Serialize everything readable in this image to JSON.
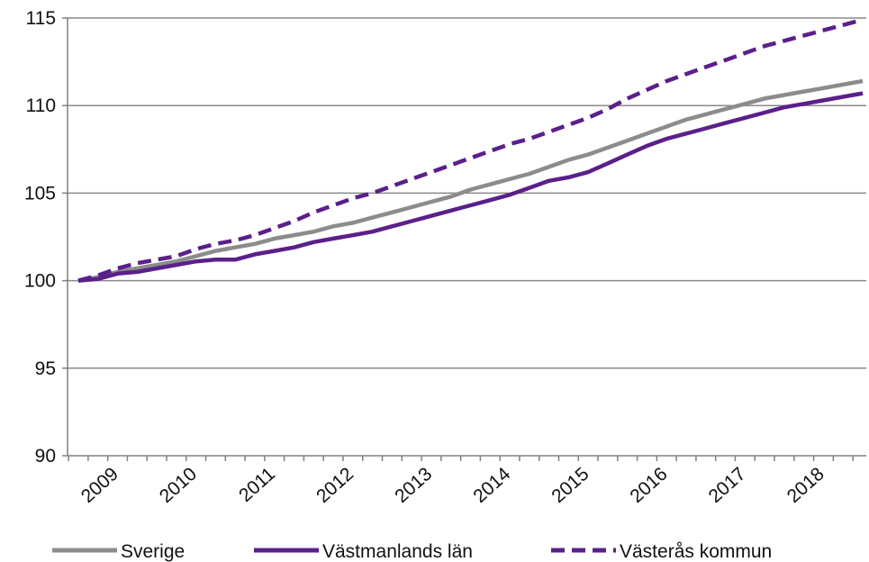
{
  "chart_data": {
    "type": "line",
    "title": "",
    "xlabel": "",
    "ylabel": "",
    "ylim": [
      90,
      115
    ],
    "yticks": [
      "90",
      "95",
      "100",
      "105",
      "110",
      "115"
    ],
    "xtick_labels": [
      "2009",
      "2010",
      "2011",
      "2012",
      "2013",
      "2014",
      "2015",
      "2016",
      "2017",
      "2018"
    ],
    "grid": true,
    "legend_position": "bottom",
    "x": [
      "2008 Q4",
      "2009 Q1",
      "2009 Q2",
      "2009 Q3",
      "2009 Q4",
      "2010 Q1",
      "2010 Q2",
      "2010 Q3",
      "2010 Q4",
      "2011 Q1",
      "2011 Q2",
      "2011 Q3",
      "2011 Q4",
      "2012 Q1",
      "2012 Q2",
      "2012 Q3",
      "2012 Q4",
      "2013 Q1",
      "2013 Q2",
      "2013 Q3",
      "2013 Q4",
      "2014 Q1",
      "2014 Q2",
      "2014 Q3",
      "2014 Q4",
      "2015 Q1",
      "2015 Q2",
      "2015 Q3",
      "2015 Q4",
      "2016 Q1",
      "2016 Q2",
      "2016 Q3",
      "2016 Q4",
      "2017 Q1",
      "2017 Q2",
      "2017 Q3",
      "2017 Q4",
      "2018 Q1",
      "2018 Q2",
      "2018 Q3",
      "2018 Q4"
    ],
    "series": [
      {
        "name": "Sverige",
        "color": "#8c8c8c",
        "dash": false,
        "values": [
          100.0,
          100.2,
          100.5,
          100.7,
          100.9,
          101.1,
          101.4,
          101.7,
          101.9,
          102.1,
          102.4,
          102.6,
          102.8,
          103.1,
          103.3,
          103.6,
          103.9,
          104.2,
          104.5,
          104.8,
          105.2,
          105.5,
          105.8,
          106.1,
          106.5,
          106.9,
          107.2,
          107.6,
          108.0,
          108.4,
          108.8,
          109.2,
          109.5,
          109.8,
          110.1,
          110.4,
          110.6,
          110.8,
          111.0,
          111.2,
          111.4
        ]
      },
      {
        "name": "Västmanlands län",
        "color": "#5b1f8a",
        "dash": false,
        "values": [
          100.0,
          100.1,
          100.4,
          100.5,
          100.7,
          100.9,
          101.1,
          101.2,
          101.2,
          101.5,
          101.7,
          101.9,
          102.2,
          102.4,
          102.6,
          102.8,
          103.1,
          103.4,
          103.7,
          104.0,
          104.3,
          104.6,
          104.9,
          105.3,
          105.7,
          105.9,
          106.2,
          106.7,
          107.2,
          107.7,
          108.1,
          108.4,
          108.7,
          109.0,
          109.3,
          109.6,
          109.9,
          110.1,
          110.3,
          110.5,
          110.7
        ]
      },
      {
        "name": "Västerås kommun",
        "color": "#5b1f8a",
        "dash": true,
        "values": [
          100.0,
          100.3,
          100.7,
          101.0,
          101.2,
          101.4,
          101.8,
          102.1,
          102.3,
          102.6,
          103.0,
          103.4,
          103.9,
          104.3,
          104.7,
          105.0,
          105.4,
          105.8,
          106.2,
          106.6,
          107.0,
          107.4,
          107.8,
          108.1,
          108.5,
          108.9,
          109.3,
          109.8,
          110.4,
          110.9,
          111.4,
          111.8,
          112.2,
          112.6,
          113.0,
          113.4,
          113.7,
          114.0,
          114.3,
          114.6,
          114.9
        ]
      }
    ]
  }
}
